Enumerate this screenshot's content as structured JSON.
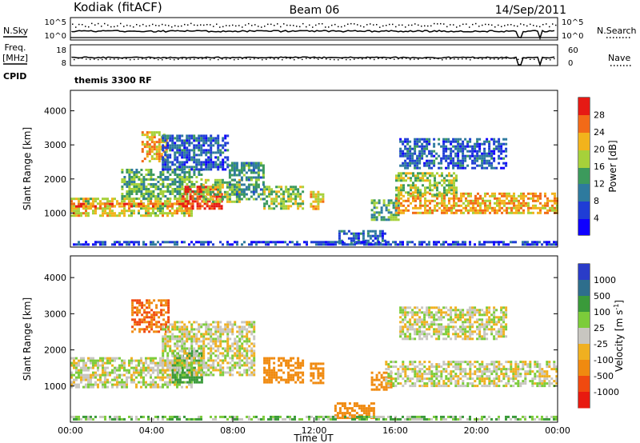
{
  "header": {
    "station": "Kodiak (fitACF)",
    "beam": "Beam 06",
    "date": "14/Sep/2011"
  },
  "panel_labels": {
    "nsky": "N.Sky",
    "nsearch": "N.Search",
    "freq_line1": "Freq.",
    "freq_line2": "[MHz]",
    "nave": "Nave",
    "cpid": "CPID",
    "cpid_value": "themis 3300 RF"
  },
  "noise_axis": {
    "left_ticks": [
      "10^5",
      "10^0"
    ],
    "right_ticks": [
      "10^5",
      "10^0"
    ]
  },
  "freq_axis": {
    "left_ticks": [
      "18",
      "8"
    ],
    "right_ticks": [
      "60",
      "0"
    ]
  },
  "chart_data": [
    {
      "type": "heatmap",
      "name": "power",
      "xlabel": "",
      "ylabel": "Slant Range [km]",
      "x_unit": "hour UT",
      "xlim": [
        0,
        24
      ],
      "ylim": [
        0,
        4600
      ],
      "yticks": [
        1000,
        2000,
        3000,
        4000
      ],
      "colorbar": {
        "label": "Power [dB]",
        "range": [
          0,
          32
        ],
        "ticks": [
          4,
          8,
          12,
          16,
          20,
          24,
          28
        ]
      },
      "regions": [
        {
          "t0": 0.0,
          "t1": 6.0,
          "r0": 950,
          "r1": 1450,
          "value": 20
        },
        {
          "t0": 0.0,
          "t1": 6.0,
          "r0": 1200,
          "r1": 1300,
          "value": 26
        },
        {
          "t0": 2.5,
          "t1": 6.5,
          "r0": 1400,
          "r1": 2300,
          "value": 15
        },
        {
          "t0": 5.5,
          "t1": 7.5,
          "r0": 1100,
          "r1": 1800,
          "value": 29
        },
        {
          "t0": 6.5,
          "t1": 8.5,
          "r0": 1300,
          "r1": 2000,
          "value": 18
        },
        {
          "t0": 3.5,
          "t1": 4.8,
          "r0": 2500,
          "r1": 3400,
          "value": 22
        },
        {
          "t0": 4.5,
          "t1": 7.8,
          "r0": 2300,
          "r1": 3300,
          "value": 8
        },
        {
          "t0": 7.8,
          "t1": 9.5,
          "r0": 1400,
          "r1": 2500,
          "value": 12
        },
        {
          "t0": 9.5,
          "t1": 11.5,
          "r0": 1100,
          "r1": 1800,
          "value": 17
        },
        {
          "t0": 11.8,
          "t1": 12.5,
          "r0": 1100,
          "r1": 1650,
          "value": 22
        },
        {
          "t0": 13.2,
          "t1": 15.5,
          "r0": 100,
          "r1": 500,
          "value": 8
        },
        {
          "t0": 14.8,
          "t1": 16.2,
          "r0": 800,
          "r1": 1400,
          "value": 14
        },
        {
          "t0": 16.0,
          "t1": 24.0,
          "r0": 1000,
          "r1": 1600,
          "value": 23
        },
        {
          "t0": 16.0,
          "t1": 19.0,
          "r0": 1500,
          "r1": 2200,
          "value": 18
        },
        {
          "t0": 16.2,
          "t1": 21.5,
          "r0": 2300,
          "r1": 3200,
          "value": 8
        },
        {
          "t0": 0.0,
          "t1": 24.0,
          "r0": 60,
          "r1": 180,
          "value": 6
        }
      ]
    },
    {
      "type": "heatmap",
      "name": "velocity",
      "xlabel": "Time UT",
      "ylabel": "Slant Range [km]",
      "x_unit": "hour UT",
      "xlim": [
        0,
        24
      ],
      "xticks": [
        "00:00",
        "04:00",
        "08:00",
        "12:00",
        "16:00",
        "20:00",
        "00:00"
      ],
      "ylim": [
        0,
        4600
      ],
      "yticks": [
        1000,
        2000,
        3000,
        4000
      ],
      "colorbar": {
        "label": "Velocity [m s^-1]",
        "ticks": [
          "1000",
          "500",
          "100",
          "25",
          "-25",
          "-100",
          "-500",
          "-1000"
        ]
      },
      "regions": [
        {
          "t0": 0.0,
          "t1": 6.0,
          "r0": 950,
          "r1": 1800,
          "value": 0
        },
        {
          "t0": 3.0,
          "t1": 4.8,
          "r0": 2500,
          "r1": 3400,
          "value": -300
        },
        {
          "t0": 5.0,
          "t1": 6.5,
          "r0": 1100,
          "r1": 2000,
          "value": 150
        },
        {
          "t0": 4.5,
          "t1": 9.0,
          "r0": 1300,
          "r1": 2800,
          "value": 0
        },
        {
          "t0": 9.5,
          "t1": 11.5,
          "r0": 1100,
          "r1": 1800,
          "value": -200
        },
        {
          "t0": 11.8,
          "t1": 12.5,
          "r0": 1100,
          "r1": 1650,
          "value": -200
        },
        {
          "t0": 13.0,
          "t1": 15.0,
          "r0": 150,
          "r1": 550,
          "value": -150
        },
        {
          "t0": 14.8,
          "t1": 15.8,
          "r0": 900,
          "r1": 1400,
          "value": -200
        },
        {
          "t0": 15.5,
          "t1": 24.0,
          "r0": 1000,
          "r1": 1700,
          "value": 0
        },
        {
          "t0": 16.2,
          "t1": 21.5,
          "r0": 2300,
          "r1": 3200,
          "value": 0
        },
        {
          "t0": 0.0,
          "t1": 24.0,
          "r0": 60,
          "r1": 180,
          "value": 50
        }
      ]
    }
  ]
}
